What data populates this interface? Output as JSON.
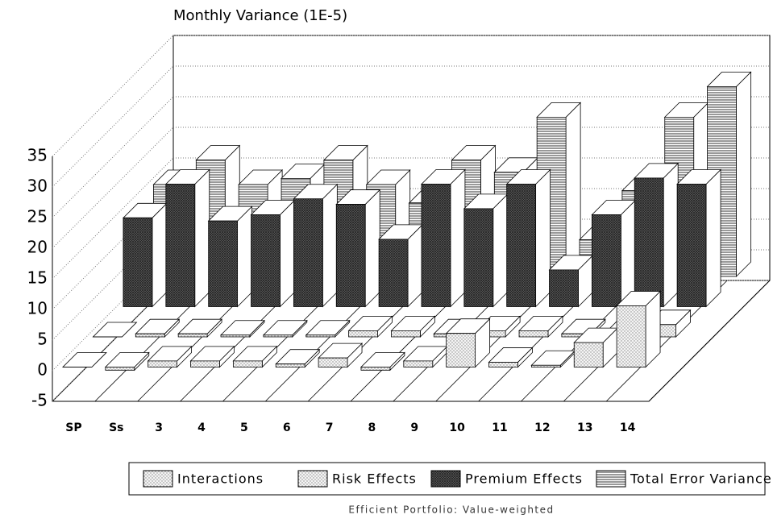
{
  "chart_data": {
    "type": "bar3d",
    "title": "Monthly Variance (1E-5)",
    "footnote": "Efficient Portfolio: Value-weighted",
    "categories": [
      "SP",
      "Ss",
      "3",
      "4",
      "5",
      "6",
      "7",
      "8",
      "9",
      "10",
      "11",
      "12",
      "13",
      "14"
    ],
    "ylim": [
      -5,
      35
    ],
    "yticks": [
      -5,
      0,
      5,
      10,
      15,
      20,
      25,
      30,
      35
    ],
    "grid": true,
    "series": [
      {
        "name": "Interactions",
        "color": "#e8e8e8",
        "pattern": "dots",
        "values": [
          0,
          -0.5,
          1,
          1,
          1,
          0.5,
          1.5,
          -0.5,
          1,
          5.5,
          0.8,
          0.3,
          4,
          10
        ]
      },
      {
        "name": "Risk Effects",
        "color": "#dcdcdc",
        "pattern": "dots",
        "values": [
          0,
          0.5,
          0.5,
          0.3,
          0.3,
          0.3,
          1,
          1,
          0.5,
          1,
          1,
          0.5,
          0.5,
          2
        ]
      },
      {
        "name": "Premium Effects",
        "color": "#555555",
        "pattern": "cross",
        "values": [
          14.5,
          20,
          14,
          15,
          17.6,
          16.7,
          11,
          20,
          16,
          20,
          6,
          15,
          21,
          20
        ]
      },
      {
        "name": "Total Error Variance",
        "color": "#ffffff",
        "pattern": "hlines",
        "values": [
          15,
          19,
          15,
          16,
          19,
          15,
          12,
          19,
          17,
          26,
          6,
          14,
          26,
          31
        ]
      }
    ]
  }
}
